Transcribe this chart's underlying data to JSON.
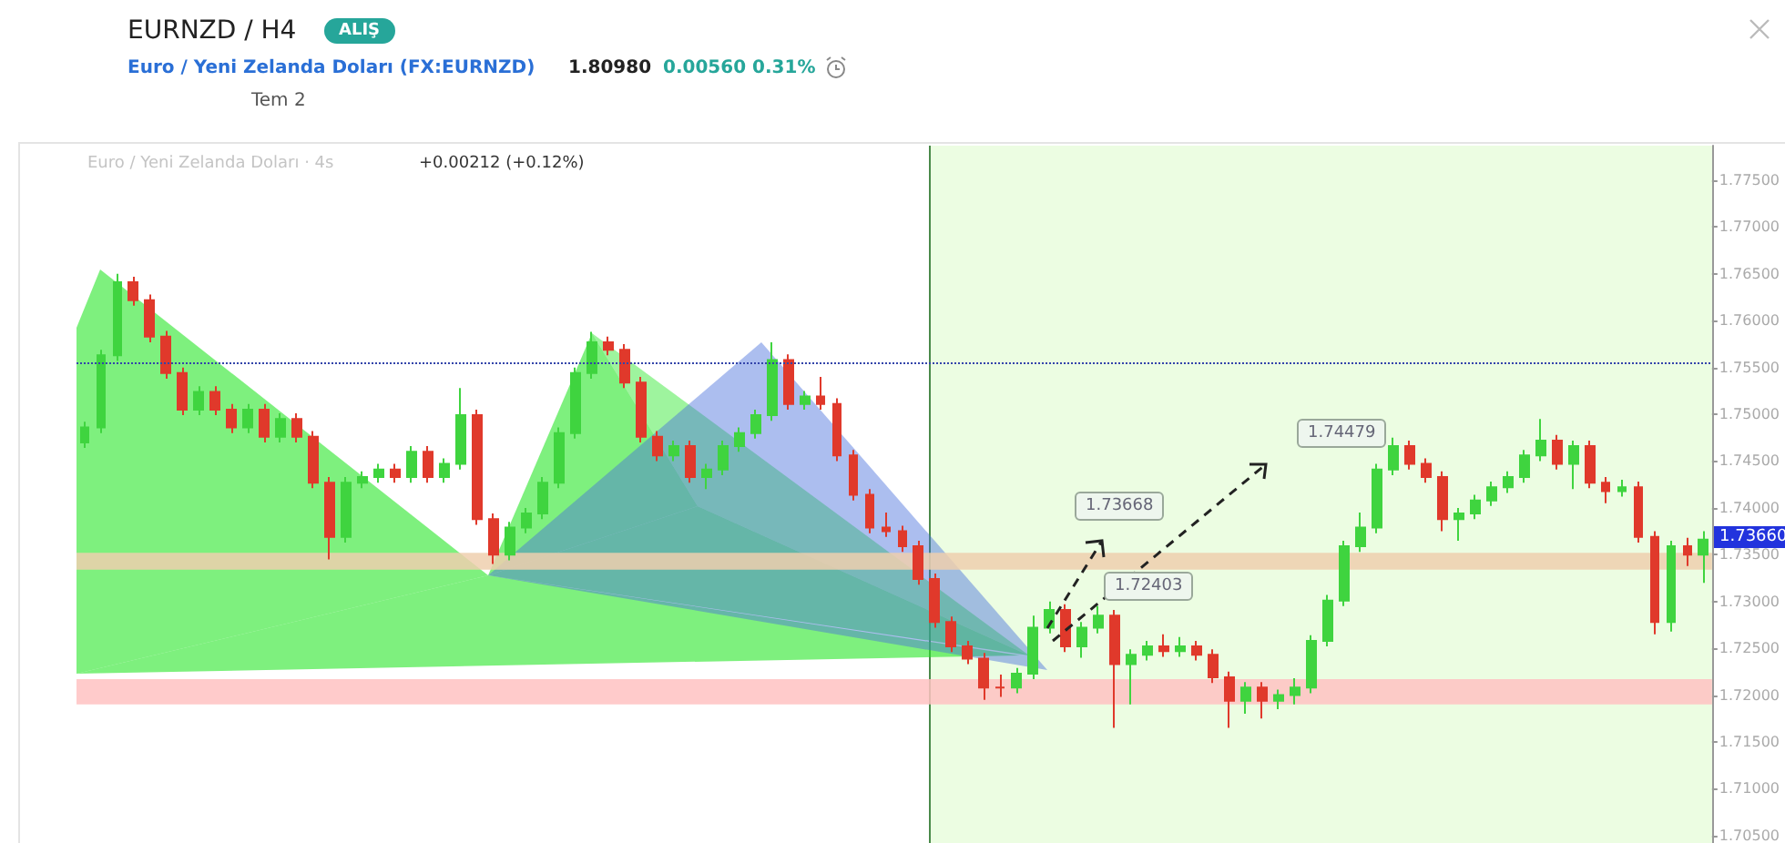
{
  "chart_data": {
    "type": "candlestick",
    "title": "EURNZD / H4",
    "subtitle": "Euro / Yeni Zelanda Doları (FX:EURNZD)",
    "annotations": [
      "ALIŞ",
      "1.80980",
      "0.00560 0.31%",
      "Tem 2",
      "Euro / Yeni Zelanda Doları · 4s",
      "+0.00212 (+0.12%)",
      "1.73668",
      "1.72403",
      "1.74479",
      "1.73660"
    ],
    "categories": [
      null,
      null,
      null,
      null,
      null,
      null,
      null,
      null,
      null,
      null,
      null,
      null,
      null,
      null,
      null,
      null,
      null,
      null,
      null,
      null,
      null,
      null,
      null,
      null,
      null,
      null,
      null,
      null,
      null,
      null,
      null,
      null,
      null,
      null,
      null,
      null,
      null,
      null,
      null,
      null,
      null,
      null,
      null,
      null,
      null,
      null,
      null,
      null,
      null,
      null,
      null,
      null,
      null,
      null,
      null,
      null,
      null,
      null,
      null,
      null,
      null,
      null,
      null,
      null,
      null,
      null,
      null,
      null,
      null,
      null,
      null,
      null,
      null,
      null,
      null,
      null,
      null,
      null,
      null,
      null,
      null,
      null,
      null,
      null,
      null,
      null,
      null,
      null,
      null,
      null,
      null,
      null,
      null,
      null,
      null,
      null,
      null,
      null,
      null,
      null
    ],
    "ohlc": [
      [
        1.747,
        1.7492,
        1.7464,
        1.7486
      ],
      [
        1.7486,
        1.7569,
        1.748,
        1.7563
      ],
      [
        1.7563,
        1.765,
        1.7557,
        1.7641
      ],
      [
        1.7641,
        1.7647,
        1.7616,
        1.7622
      ],
      [
        1.7622,
        1.7628,
        1.7577,
        1.7583
      ],
      [
        1.7583,
        1.7589,
        1.7538,
        1.7544
      ],
      [
        1.7544,
        1.755,
        1.7499,
        1.7505
      ],
      [
        1.7505,
        1.753,
        1.7499,
        1.7524
      ],
      [
        1.7524,
        1.753,
        1.7499,
        1.7505
      ],
      [
        1.7505,
        1.7511,
        1.748,
        1.7486
      ],
      [
        1.7486,
        1.7511,
        1.748,
        1.7505
      ],
      [
        1.7505,
        1.7511,
        1.747,
        1.7476
      ],
      [
        1.7476,
        1.7501,
        1.747,
        1.7495
      ],
      [
        1.7495,
        1.7501,
        1.747,
        1.7476
      ],
      [
        1.7476,
        1.7482,
        1.7421,
        1.7427
      ],
      [
        1.7427,
        1.7433,
        1.7345,
        1.7369
      ],
      [
        1.7369,
        1.7433,
        1.7363,
        1.7427
      ],
      [
        1.7427,
        1.7439,
        1.7421,
        1.7433
      ],
      [
        1.7433,
        1.7447,
        1.7427,
        1.7441
      ],
      [
        1.7441,
        1.7447,
        1.7427,
        1.7433
      ],
      [
        1.7433,
        1.7466,
        1.7427,
        1.746
      ],
      [
        1.746,
        1.7466,
        1.7427,
        1.7433
      ],
      [
        1.7433,
        1.7453,
        1.7427,
        1.7447
      ],
      [
        1.7447,
        1.7528,
        1.7441,
        1.7499
      ],
      [
        1.7499,
        1.7505,
        1.7382,
        1.7388
      ],
      [
        1.7388,
        1.7394,
        1.734,
        1.735
      ],
      [
        1.735,
        1.7385,
        1.7344,
        1.7379
      ],
      [
        1.7379,
        1.74,
        1.7373,
        1.7394
      ],
      [
        1.7394,
        1.7433,
        1.7388,
        1.7427
      ],
      [
        1.7427,
        1.7486,
        1.7421,
        1.748
      ],
      [
        1.748,
        1.755,
        1.7474,
        1.7544
      ],
      [
        1.7544,
        1.7588,
        1.7538,
        1.7577
      ],
      [
        1.7577,
        1.7583,
        1.7563,
        1.7569
      ],
      [
        1.7569,
        1.7575,
        1.7528,
        1.7534
      ],
      [
        1.7534,
        1.754,
        1.747,
        1.7476
      ],
      [
        1.7476,
        1.7482,
        1.745,
        1.7456
      ],
      [
        1.7456,
        1.7472,
        1.745,
        1.7466
      ],
      [
        1.7466,
        1.7472,
        1.7427,
        1.7433
      ],
      [
        1.7433,
        1.7447,
        1.742,
        1.7441
      ],
      [
        1.7441,
        1.7472,
        1.7435,
        1.7466
      ],
      [
        1.7466,
        1.7486,
        1.746,
        1.748
      ],
      [
        1.748,
        1.7505,
        1.7474,
        1.7499
      ],
      [
        1.7499,
        1.7577,
        1.7493,
        1.7558
      ],
      [
        1.7558,
        1.7564,
        1.7505,
        1.7511
      ],
      [
        1.7511,
        1.7525,
        1.7505,
        1.7519
      ],
      [
        1.7519,
        1.754,
        1.7505,
        1.7511
      ],
      [
        1.7511,
        1.7517,
        1.745,
        1.7456
      ],
      [
        1.7456,
        1.7462,
        1.7408,
        1.7414
      ],
      [
        1.7414,
        1.742,
        1.7373,
        1.7379
      ],
      [
        1.7379,
        1.7395,
        1.7369,
        1.7375
      ],
      [
        1.7375,
        1.7381,
        1.7353,
        1.7359
      ],
      [
        1.7359,
        1.7365,
        1.7318,
        1.7324
      ],
      [
        1.7324,
        1.733,
        1.7272,
        1.7278
      ],
      [
        1.7278,
        1.7284,
        1.7246,
        1.7252
      ],
      [
        1.7252,
        1.7258,
        1.7233,
        1.7239
      ],
      [
        1.7239,
        1.7245,
        1.7195,
        1.7208
      ],
      [
        1.7208,
        1.7222,
        1.7198,
        1.7208
      ],
      [
        1.7208,
        1.7229,
        1.7202,
        1.7223
      ],
      [
        1.7223,
        1.7285,
        1.7217,
        1.7272
      ],
      [
        1.7272,
        1.73,
        1.7266,
        1.7291
      ],
      [
        1.7291,
        1.7297,
        1.7246,
        1.7252
      ],
      [
        1.7252,
        1.7278,
        1.724,
        1.7272
      ],
      [
        1.7272,
        1.7295,
        1.7266,
        1.7285
      ],
      [
        1.7285,
        1.7291,
        1.7165,
        1.7233
      ],
      [
        1.7233,
        1.7249,
        1.719,
        1.7243
      ],
      [
        1.7243,
        1.7258,
        1.7237,
        1.7252
      ],
      [
        1.7252,
        1.7265,
        1.7241,
        1.7247
      ],
      [
        1.7247,
        1.7262,
        1.7241,
        1.7252
      ],
      [
        1.7252,
        1.7258,
        1.7237,
        1.7243
      ],
      [
        1.7243,
        1.7249,
        1.7213,
        1.7219
      ],
      [
        1.7219,
        1.7225,
        1.7165,
        1.7194
      ],
      [
        1.7194,
        1.7214,
        1.718,
        1.7208
      ],
      [
        1.7208,
        1.7214,
        1.7175,
        1.7194
      ],
      [
        1.7194,
        1.7206,
        1.7185,
        1.72
      ],
      [
        1.72,
        1.7218,
        1.719,
        1.7208
      ],
      [
        1.7208,
        1.7264,
        1.7202,
        1.7258
      ],
      [
        1.7258,
        1.7307,
        1.7252,
        1.7301
      ],
      [
        1.7301,
        1.7365,
        1.7295,
        1.7359
      ],
      [
        1.7359,
        1.7395,
        1.7353,
        1.7379
      ],
      [
        1.7379,
        1.7447,
        1.7373,
        1.7441
      ],
      [
        1.7441,
        1.7475,
        1.7435,
        1.7466
      ],
      [
        1.7466,
        1.7472,
        1.7441,
        1.7447
      ],
      [
        1.7447,
        1.7453,
        1.7427,
        1.7433
      ],
      [
        1.7433,
        1.7439,
        1.7375,
        1.7388
      ],
      [
        1.7388,
        1.74,
        1.7365,
        1.7394
      ],
      [
        1.7394,
        1.7414,
        1.7388,
        1.7408
      ],
      [
        1.7408,
        1.7428,
        1.7402,
        1.7422
      ],
      [
        1.7422,
        1.7439,
        1.7416,
        1.7433
      ],
      [
        1.7433,
        1.7462,
        1.7427,
        1.7456
      ],
      [
        1.7456,
        1.7495,
        1.745,
        1.7472
      ],
      [
        1.7472,
        1.7478,
        1.7441,
        1.7447
      ],
      [
        1.7447,
        1.7472,
        1.742,
        1.7466
      ],
      [
        1.7466,
        1.7472,
        1.7421,
        1.7427
      ],
      [
        1.7427,
        1.7433,
        1.7405,
        1.7418
      ],
      [
        1.7418,
        1.743,
        1.7412,
        1.7422
      ],
      [
        1.7422,
        1.7428,
        1.7363,
        1.7369
      ],
      [
        1.7369,
        1.7375,
        1.7265,
        1.7278
      ],
      [
        1.7278,
        1.7365,
        1.7268,
        1.7359
      ],
      [
        1.7359,
        1.7368,
        1.7338,
        1.735
      ],
      [
        1.735,
        1.7375,
        1.732,
        1.7366
      ]
    ],
    "colors": [
      "#3fd43f",
      "#3fd43f",
      "#3fd43f",
      "#e0392b",
      "#e0392b",
      "#e0392b",
      "#e0392b",
      "#3fd43f",
      "#e0392b",
      "#e0392b",
      "#3fd43f",
      "#e0392b",
      "#3fd43f",
      "#e0392b",
      "#e0392b",
      "#e0392b",
      "#3fd43f",
      "#3fd43f",
      "#3fd43f",
      "#e0392b",
      "#3fd43f",
      "#e0392b",
      "#3fd43f",
      "#3fd43f",
      "#e0392b",
      "#e0392b",
      "#3fd43f",
      "#3fd43f",
      "#3fd43f",
      "#3fd43f",
      "#3fd43f",
      "#3fd43f",
      "#e0392b",
      "#e0392b",
      "#e0392b",
      "#e0392b",
      "#3fd43f",
      "#e0392b",
      "#3fd43f",
      "#3fd43f",
      "#3fd43f",
      "#3fd43f",
      "#3fd43f",
      "#e0392b",
      "#3fd43f",
      "#e0392b",
      "#e0392b",
      "#e0392b",
      "#e0392b",
      "#e0392b",
      "#e0392b",
      "#e0392b",
      "#e0392b",
      "#e0392b",
      "#e0392b",
      "#e0392b",
      "#e0392b",
      "#3fd43f",
      "#3fd43f",
      "#3fd43f",
      "#e0392b",
      "#3fd43f",
      "#3fd43f",
      "#e0392b",
      "#3fd43f",
      "#3fd43f",
      "#e0392b",
      "#3fd43f",
      "#e0392b",
      "#e0392b",
      "#e0392b",
      "#3fd43f",
      "#e0392b",
      "#3fd43f",
      "#3fd43f",
      "#3fd43f",
      "#3fd43f",
      "#3fd43f",
      "#3fd43f",
      "#3fd43f",
      "#3fd43f",
      "#e0392b",
      "#e0392b",
      "#e0392b",
      "#3fd43f",
      "#3fd43f",
      "#3fd43f",
      "#3fd43f",
      "#3fd43f",
      "#3fd43f",
      "#e0392b",
      "#3fd43f",
      "#e0392b",
      "#e0392b",
      "#3fd43f",
      "#e0392b",
      "#e0392b",
      "#3fd43f",
      "#e0392b",
      "#3fd43f"
    ],
    "ylim": [
      1.7042,
      1.7787
    ],
    "yticks": [
      {
        "value": 1.705,
        "label": "1.70500"
      },
      {
        "value": 1.71,
        "label": "1.71000"
      },
      {
        "value": 1.715,
        "label": "1.71500"
      },
      {
        "value": 1.72,
        "label": "1.72000"
      },
      {
        "value": 1.725,
        "label": "1.72500"
      },
      {
        "value": 1.73,
        "label": "1.73000"
      },
      {
        "value": 1.735,
        "label": "1.73500"
      },
      {
        "value": 1.74,
        "label": "1.74000"
      },
      {
        "value": 1.745,
        "label": "1.74500"
      },
      {
        "value": 1.75,
        "label": "1.75000"
      },
      {
        "value": 1.755,
        "label": "1.75500"
      },
      {
        "value": 1.76,
        "label": "1.76000"
      },
      {
        "value": 1.765,
        "label": "1.76500"
      },
      {
        "value": 1.77,
        "label": "1.77000"
      },
      {
        "value": 1.775,
        "label": "1.77500"
      }
    ],
    "tick_labels": "y",
    "ref_lines": [
      {
        "axis": "y",
        "value": 1.7555,
        "label": null,
        "color": "#3344aa",
        "line_style": "dotted"
      }
    ],
    "bands": [
      {
        "axis": "y",
        "from": 1.719,
        "to": 1.7217,
        "label": null,
        "color": "#ffc2c2"
      },
      {
        "axis": "y",
        "from": 1.7334,
        "to": 1.7352,
        "label": null,
        "color": "#efcfae"
      }
    ]
  }
}
